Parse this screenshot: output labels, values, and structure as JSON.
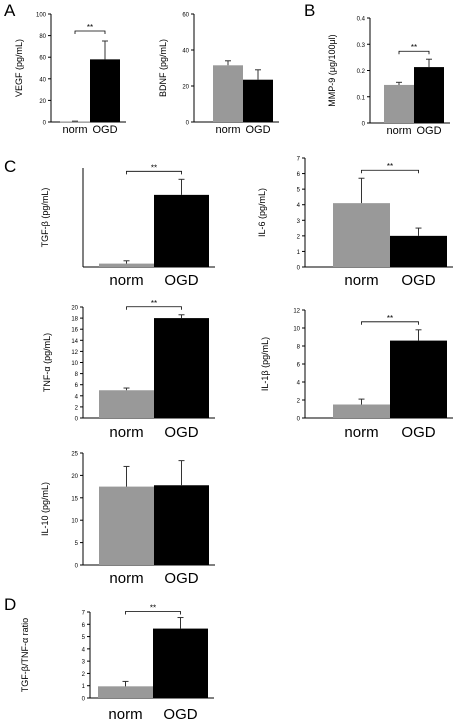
{
  "panels": [
    {
      "letter": "A"
    },
    {
      "letter": "B"
    },
    {
      "letter": "C"
    },
    {
      "letter": "D"
    }
  ],
  "colors": {
    "norm": "#999999",
    "OGD": "#000000",
    "error_bar": "#333333"
  },
  "chart_data": [
    {
      "id": "vegf",
      "type": "bar",
      "categories": [
        "norm",
        "OGD"
      ],
      "values": [
        0.5,
        58
      ],
      "errors": [
        0.3,
        17
      ],
      "ylabel": "VEGF (pg/mL)",
      "ylim": [
        0,
        100
      ],
      "yticks": [
        "0",
        "20",
        "40",
        "60",
        "80",
        "100"
      ],
      "significance": "**"
    },
    {
      "id": "bdnf",
      "type": "bar",
      "categories": [
        "norm",
        "OGD"
      ],
      "values": [
        31.5,
        23.5
      ],
      "errors": [
        2.5,
        5.5
      ],
      "ylabel": "BDNF (pg/mL)",
      "ylim": [
        0,
        60
      ],
      "yticks": [
        "0",
        "20",
        "40",
        "60"
      ],
      "significance": ""
    },
    {
      "id": "mmp9",
      "type": "bar",
      "categories": [
        "norm",
        "OGD"
      ],
      "values": [
        0.145,
        0.213
      ],
      "errors": [
        0.01,
        0.03
      ],
      "ylabel": "MMP-9 (μg/100μl)",
      "ylim": [
        0,
        0.4
      ],
      "yticks": [
        "0",
        "0.1",
        "0.2",
        "0.3",
        "0.4"
      ],
      "significance": "**"
    },
    {
      "id": "tgfb",
      "type": "bar",
      "categories": [
        "norm",
        "OGD"
      ],
      "values": [
        1.2,
        25.5
      ],
      "errors": [
        1.0,
        5.5
      ],
      "ylabel": "TGF-β (pg/mL)",
      "ylim": [
        0,
        35
      ],
      "yticks": [],
      "significance": "**"
    },
    {
      "id": "il6",
      "type": "bar",
      "categories": [
        "norm",
        "OGD"
      ],
      "values": [
        4.1,
        2.0
      ],
      "errors": [
        1.6,
        0.5
      ],
      "ylabel": "IL-6 (pg/mL)",
      "ylim": [
        0,
        7
      ],
      "yticks": [
        "0",
        "1",
        "2",
        "3",
        "4",
        "5",
        "6",
        "7"
      ],
      "significance": "**"
    },
    {
      "id": "tnfa",
      "type": "bar",
      "categories": [
        "norm",
        "OGD"
      ],
      "values": [
        5.0,
        18.0
      ],
      "errors": [
        0.4,
        0.6
      ],
      "ylabel": "TNF-α (pg/mL)",
      "ylim": [
        0,
        20
      ],
      "yticks": [
        "0",
        "2",
        "4",
        "6",
        "8",
        "10",
        "12",
        "14",
        "16",
        "18",
        "20"
      ],
      "significance": "**"
    },
    {
      "id": "il1b",
      "type": "bar",
      "categories": [
        "norm",
        "OGD"
      ],
      "values": [
        1.5,
        8.6
      ],
      "errors": [
        0.6,
        1.2
      ],
      "ylabel": "IL-1β (pg/mL)",
      "ylim": [
        0,
        12
      ],
      "yticks": [
        "0",
        "2",
        "4",
        "6",
        "8",
        "10",
        "12"
      ],
      "significance": "**"
    },
    {
      "id": "il10",
      "type": "bar",
      "categories": [
        "norm",
        "OGD"
      ],
      "values": [
        17.5,
        17.8
      ],
      "errors": [
        4.5,
        5.5
      ],
      "ylabel": "IL-10 (pg/mL)",
      "ylim": [
        0,
        25
      ],
      "yticks": [
        "0",
        "5",
        "10",
        "15",
        "20",
        "25"
      ],
      "significance": ""
    },
    {
      "id": "ratio",
      "type": "bar",
      "categories": [
        "norm",
        "OGD"
      ],
      "values": [
        0.95,
        5.65
      ],
      "errors": [
        0.4,
        0.9
      ],
      "ylabel": "TGF-β/TNF-α ratio",
      "ylim": [
        0,
        7
      ],
      "yticks": [
        "0",
        "1",
        "2",
        "3",
        "4",
        "5",
        "6",
        "7"
      ],
      "significance": "**"
    }
  ]
}
